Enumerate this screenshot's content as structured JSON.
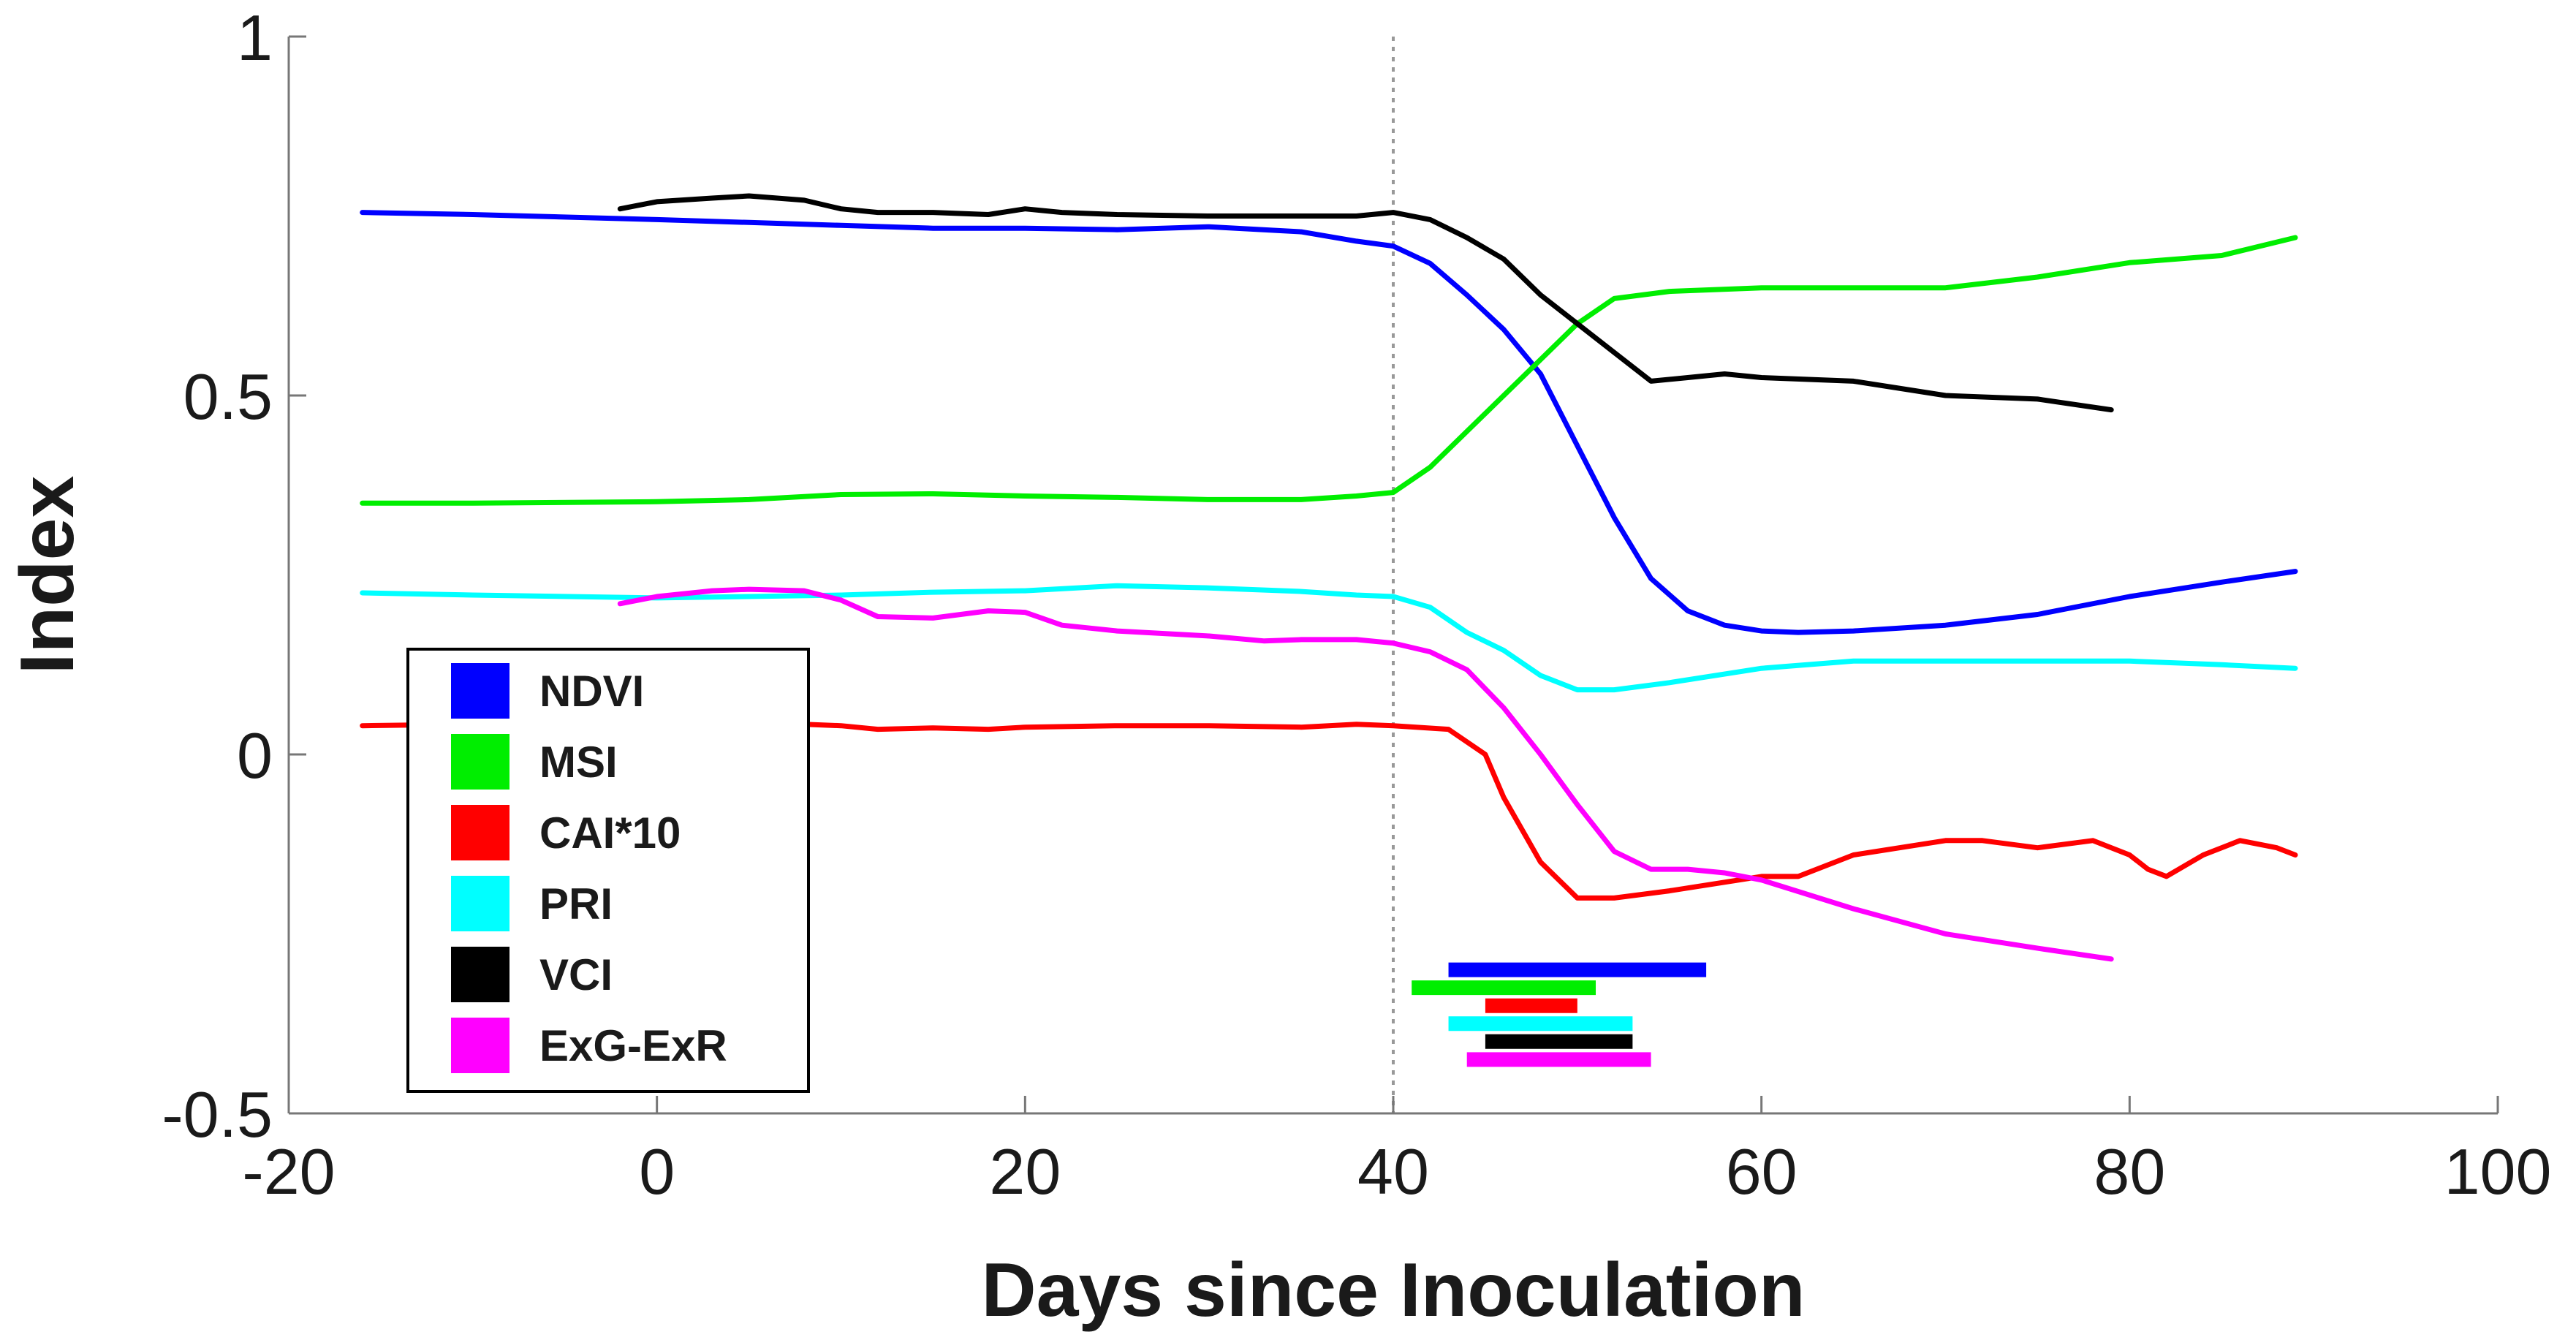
{
  "chart_data": {
    "type": "line",
    "title": "",
    "xlabel": "Days since Inoculation",
    "ylabel": "Index",
    "xlim": [
      -20,
      100
    ],
    "ylim": [
      -0.5,
      1
    ],
    "x_ticks": [
      -20,
      0,
      20,
      40,
      60,
      80,
      100
    ],
    "x_tick_labels": [
      "-20",
      "0",
      "20",
      "40",
      "60",
      "80",
      "100"
    ],
    "y_ticks": [
      -0.5,
      0,
      0.5,
      1
    ],
    "y_tick_labels": [
      "-0.5",
      "0",
      "0.5",
      "1"
    ],
    "grid": false,
    "legend_position": "lower-left",
    "reference_line": {
      "x": 40,
      "style": "dotted",
      "color": "#999999"
    },
    "series": [
      {
        "name": "NDVI",
        "color": "#0000ff",
        "x": [
          -16,
          -10,
          0,
          5,
          10,
          15,
          20,
          25,
          30,
          35,
          38,
          40,
          42,
          44,
          46,
          48,
          50,
          52,
          54,
          56,
          58,
          60,
          62,
          65,
          70,
          75,
          80,
          85,
          89
        ],
        "y": [
          0.755,
          0.752,
          0.745,
          0.741,
          0.737,
          0.733,
          0.733,
          0.731,
          0.735,
          0.728,
          0.715,
          0.708,
          0.684,
          0.64,
          0.592,
          0.53,
          0.43,
          0.33,
          0.245,
          0.2,
          0.18,
          0.172,
          0.17,
          0.172,
          0.18,
          0.195,
          0.22,
          0.24,
          0.255
        ]
      },
      {
        "name": "MSI",
        "color": "#00ee00",
        "x": [
          -16,
          -10,
          0,
          5,
          10,
          15,
          20,
          25,
          30,
          35,
          38,
          40,
          42,
          44,
          46,
          48,
          50,
          52,
          55,
          60,
          65,
          70,
          75,
          80,
          85,
          89
        ],
        "y": [
          0.35,
          0.35,
          0.352,
          0.355,
          0.362,
          0.363,
          0.36,
          0.358,
          0.355,
          0.355,
          0.36,
          0.365,
          0.4,
          0.45,
          0.5,
          0.55,
          0.6,
          0.635,
          0.645,
          0.65,
          0.65,
          0.65,
          0.665,
          0.685,
          0.695,
          0.72
        ]
      },
      {
        "name": "CAI*10",
        "color": "#ff0000",
        "x": [
          -16,
          -10,
          -5,
          0,
          5,
          10,
          12,
          15,
          18,
          20,
          25,
          30,
          35,
          38,
          40,
          43,
          45,
          46,
          48,
          50,
          52,
          55,
          60,
          62,
          65,
          70,
          72,
          75,
          78,
          80,
          81,
          82,
          84,
          86,
          88,
          89
        ],
        "y": [
          0.04,
          0.042,
          0.04,
          0.043,
          0.045,
          0.04,
          0.035,
          0.037,
          0.035,
          0.038,
          0.04,
          0.04,
          0.038,
          0.042,
          0.04,
          0.035,
          0.0,
          -0.06,
          -0.15,
          -0.2,
          -0.2,
          -0.19,
          -0.17,
          -0.17,
          -0.14,
          -0.12,
          -0.12,
          -0.13,
          -0.12,
          -0.14,
          -0.16,
          -0.17,
          -0.14,
          -0.12,
          -0.13,
          -0.14
        ]
      },
      {
        "name": "PRI",
        "color": "#00ffff",
        "x": [
          -16,
          -10,
          0,
          5,
          10,
          15,
          20,
          25,
          30,
          35,
          38,
          40,
          42,
          44,
          46,
          48,
          50,
          52,
          55,
          60,
          65,
          70,
          75,
          80,
          85,
          89
        ],
        "y": [
          0.225,
          0.222,
          0.218,
          0.22,
          0.222,
          0.226,
          0.228,
          0.235,
          0.232,
          0.227,
          0.222,
          0.22,
          0.205,
          0.17,
          0.145,
          0.11,
          0.09,
          0.09,
          0.1,
          0.12,
          0.13,
          0.13,
          0.13,
          0.13,
          0.125,
          0.12
        ]
      },
      {
        "name": "VCI",
        "color": "#000000",
        "x": [
          -2,
          0,
          3,
          5,
          8,
          10,
          12,
          15,
          18,
          20,
          22,
          25,
          30,
          35,
          38,
          40,
          42,
          44,
          46,
          48,
          50,
          52,
          54,
          56,
          58,
          60,
          65,
          70,
          75,
          79
        ],
        "y": [
          0.76,
          0.77,
          0.775,
          0.778,
          0.772,
          0.76,
          0.755,
          0.755,
          0.752,
          0.76,
          0.755,
          0.752,
          0.75,
          0.75,
          0.75,
          0.755,
          0.745,
          0.72,
          0.69,
          0.64,
          0.6,
          0.56,
          0.52,
          0.525,
          0.53,
          0.525,
          0.52,
          0.5,
          0.495,
          0.48
        ]
      },
      {
        "name": "ExG-ExR",
        "color": "#ff00ff",
        "x": [
          -2,
          0,
          3,
          5,
          8,
          10,
          12,
          15,
          18,
          20,
          22,
          25,
          30,
          33,
          35,
          38,
          40,
          42,
          44,
          46,
          48,
          50,
          52,
          54,
          56,
          58,
          60,
          65,
          70,
          75,
          79
        ],
        "y": [
          0.21,
          0.22,
          0.228,
          0.23,
          0.228,
          0.215,
          0.192,
          0.19,
          0.2,
          0.198,
          0.18,
          0.172,
          0.165,
          0.158,
          0.16,
          0.16,
          0.155,
          0.143,
          0.118,
          0.065,
          0.0,
          -0.07,
          -0.135,
          -0.16,
          -0.16,
          -0.165,
          -0.175,
          -0.215,
          -0.25,
          -0.27,
          -0.285
        ]
      }
    ],
    "detection_bars": [
      {
        "name": "NDVI",
        "color": "#0000ff",
        "x_start": 43,
        "x_end": 57,
        "y": -0.3
      },
      {
        "name": "MSI",
        "color": "#00ee00",
        "x_start": 41,
        "x_end": 51,
        "y": -0.325
      },
      {
        "name": "CAI*10",
        "color": "#ff0000",
        "x_start": 45,
        "x_end": 50,
        "y": -0.35
      },
      {
        "name": "PRI",
        "color": "#00ffff",
        "x_start": 43,
        "x_end": 53,
        "y": -0.375
      },
      {
        "name": "VCI",
        "color": "#000000",
        "x_start": 45,
        "x_end": 53,
        "y": -0.4
      },
      {
        "name": "ExG-ExR",
        "color": "#ff00ff",
        "x_start": 44,
        "x_end": 54,
        "y": -0.425
      }
    ],
    "legend": [
      {
        "label": "NDVI",
        "color": "#0000ff"
      },
      {
        "label": "MSI",
        "color": "#00ee00"
      },
      {
        "label": "CAI*10",
        "color": "#ff0000"
      },
      {
        "label": "PRI",
        "color": "#00ffff"
      },
      {
        "label": "VCI",
        "color": "#000000"
      },
      {
        "label": "ExG-ExR",
        "color": "#ff00ff"
      }
    ]
  }
}
